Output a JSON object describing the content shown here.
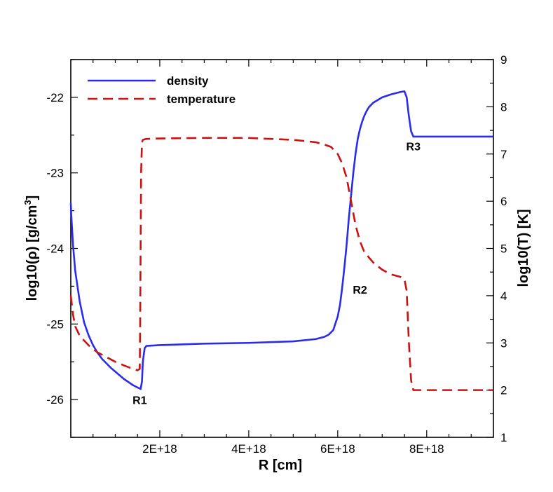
{
  "chart_data": {
    "type": "line",
    "title": "",
    "xlabel": "R [cm]",
    "ylabel_left": "log10(ρ) [g/cm³]",
    "ylabel_left_parts": {
      "main": "log10(ρ) [g/cm",
      "sup": "3",
      "close": "]"
    },
    "ylabel_right": "log10(T) [K]",
    "xlim": [
      0,
      9.5e+18
    ],
    "ylim_left": [
      -26.5,
      -21.5
    ],
    "ylim_right": [
      1,
      9
    ],
    "x_ticks": [
      2e+18,
      4e+18,
      6e+18,
      8e+18
    ],
    "x_tick_labels": [
      "2E+18",
      "4E+18",
      "6E+18",
      "8E+18"
    ],
    "y_left_ticks": [
      -22,
      -23,
      -24,
      -25,
      -26
    ],
    "y_left_tick_labels": [
      "-22",
      "-23",
      "-24",
      "-25",
      "-26"
    ],
    "y_right_ticks": [
      1,
      2,
      3,
      4,
      5,
      6,
      7,
      8,
      9
    ],
    "y_right_tick_labels": [
      "1",
      "2",
      "3",
      "4",
      "5",
      "6",
      "7",
      "8",
      "9"
    ],
    "legend": {
      "position": "top-left",
      "entries": [
        "density",
        "temperature"
      ]
    },
    "annotations": [
      {
        "text": "R1",
        "x": 1.55e+18,
        "axis": "left",
        "y": -26.06
      },
      {
        "text": "R2",
        "x": 6.5e+18,
        "axis": "left",
        "y": -24.6
      },
      {
        "text": "R3",
        "x": 7.7e+18,
        "axis": "left",
        "y": -22.7
      }
    ],
    "series": [
      {
        "name": "density",
        "axis": "left",
        "color": "#2b2bee",
        "style": "solid",
        "x": [
          0,
          1e+16,
          5e+16,
          1e+17,
          2e+17,
          3e+17,
          4e+17,
          5e+17,
          6e+17,
          7e+17,
          8e+17,
          9e+17,
          1e+18,
          1.1e+18,
          1.2e+18,
          1.3e+18,
          1.4e+18,
          1.5e+18,
          1.57e+18,
          1.6e+18,
          1.62e+18,
          1.66e+18,
          1.7e+18,
          2e+18,
          3e+18,
          4e+18,
          5e+18,
          5.5e+18,
          5.7e+18,
          5.8e+18,
          5.9e+18,
          6e+18,
          6.05e+18,
          6.1e+18,
          6.15e+18,
          6.2e+18,
          6.25e+18,
          6.3e+18,
          6.35e+18,
          6.4e+18,
          6.45e+18,
          6.5e+18,
          6.55e+18,
          6.6e+18,
          6.65e+18,
          6.7e+18,
          6.8e+18,
          7e+18,
          7.2e+18,
          7.4e+18,
          7.5e+18,
          7.55e+18,
          7.6e+18,
          7.65e+18,
          7.7e+18,
          9.5e+18
        ],
        "y": [
          -23.4,
          -23.55,
          -23.95,
          -24.3,
          -24.7,
          -24.98,
          -25.15,
          -25.28,
          -25.38,
          -25.46,
          -25.52,
          -25.58,
          -25.63,
          -25.68,
          -25.73,
          -25.77,
          -25.81,
          -25.84,
          -25.86,
          -25.76,
          -25.5,
          -25.32,
          -25.29,
          -25.28,
          -25.26,
          -25.25,
          -25.23,
          -25.2,
          -25.17,
          -25.14,
          -25.08,
          -24.9,
          -24.75,
          -24.52,
          -24.25,
          -23.95,
          -23.6,
          -23.3,
          -23.0,
          -22.75,
          -22.55,
          -22.42,
          -22.32,
          -22.24,
          -22.18,
          -22.13,
          -22.07,
          -22.0,
          -21.96,
          -21.93,
          -21.92,
          -22.0,
          -22.25,
          -22.45,
          -22.52,
          -22.52
        ]
      },
      {
        "name": "temperature",
        "axis": "right",
        "color": "#cc1111",
        "style": "dashed",
        "x": [
          0,
          5e+16,
          1e+17,
          2e+17,
          3e+17,
          4e+17,
          5e+17,
          6e+17,
          7e+17,
          8e+17,
          9e+17,
          1e+18,
          1.2e+18,
          1.4e+18,
          1.5e+18,
          1.55e+18,
          1.56e+18,
          1.58e+18,
          1.6e+18,
          1.62e+18,
          1.65e+18,
          1.7e+18,
          2e+18,
          3e+18,
          4e+18,
          5e+18,
          5.5e+18,
          5.7e+18,
          5.85e+18,
          6e+18,
          6.1e+18,
          6.2e+18,
          6.3e+18,
          6.4e+18,
          6.5e+18,
          6.6e+18,
          6.8e+18,
          7e+18,
          7.2e+18,
          7.4e+18,
          7.5e+18,
          7.55e+18,
          7.6e+18,
          7.65e+18,
          7.7e+18,
          9.5e+18
        ],
        "y": [
          4.0,
          3.6,
          3.35,
          3.15,
          3.05,
          2.95,
          2.87,
          2.8,
          2.75,
          2.7,
          2.65,
          2.6,
          2.52,
          2.45,
          2.42,
          2.45,
          3.5,
          6.6,
          7.25,
          7.3,
          7.31,
          7.32,
          7.33,
          7.34,
          7.34,
          7.3,
          7.25,
          7.2,
          7.15,
          7.0,
          6.8,
          6.5,
          6.0,
          5.5,
          5.15,
          4.92,
          4.7,
          4.55,
          4.45,
          4.4,
          4.35,
          4.1,
          3.0,
          2.2,
          2.0,
          2.0
        ]
      }
    ]
  }
}
